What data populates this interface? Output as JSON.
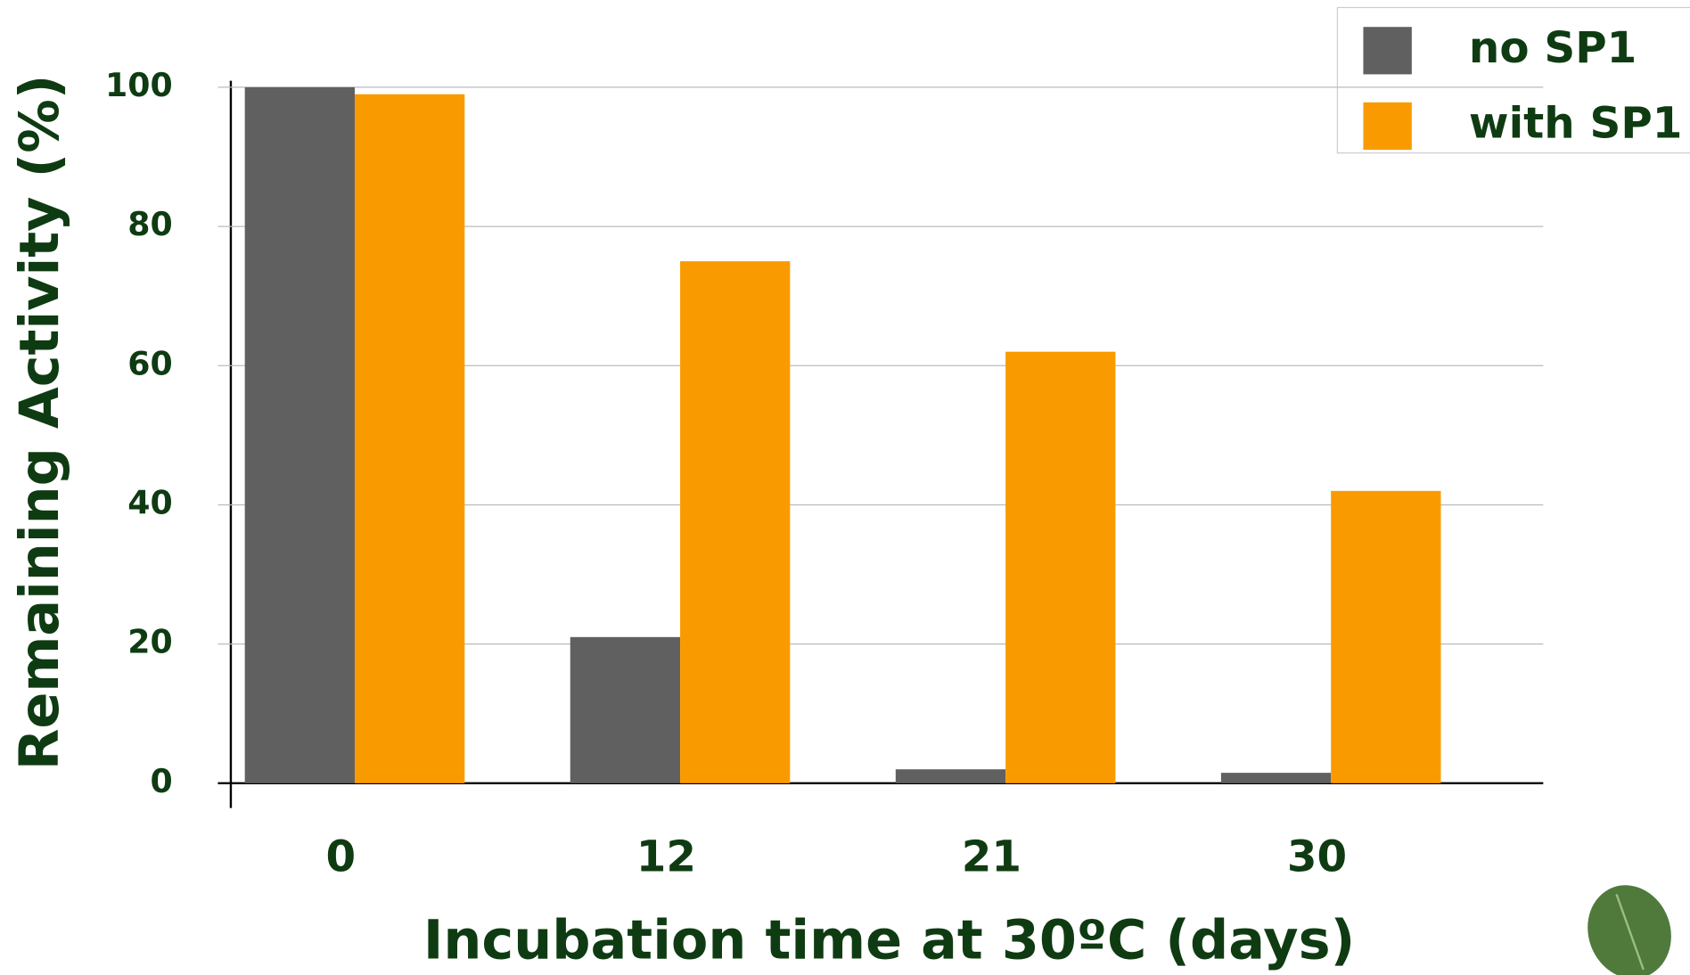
{
  "chart_data": {
    "type": "bar",
    "x_label": "Incubation time at 30ºC (days)",
    "y_label": "Remaining Activity (%)",
    "categories": [
      "0",
      "12",
      "21",
      "30"
    ],
    "series": [
      {
        "name": "no SP1",
        "color": "#606060",
        "values": [
          100,
          21,
          2,
          1.5
        ]
      },
      {
        "name": "with SP1",
        "color": "#f99b00",
        "values": [
          99,
          75,
          62,
          42
        ]
      }
    ],
    "ylim": [
      0,
      100
    ],
    "yticks": [
      0,
      20,
      40,
      60,
      80,
      100
    ],
    "grid": true,
    "legend": "top-right"
  }
}
